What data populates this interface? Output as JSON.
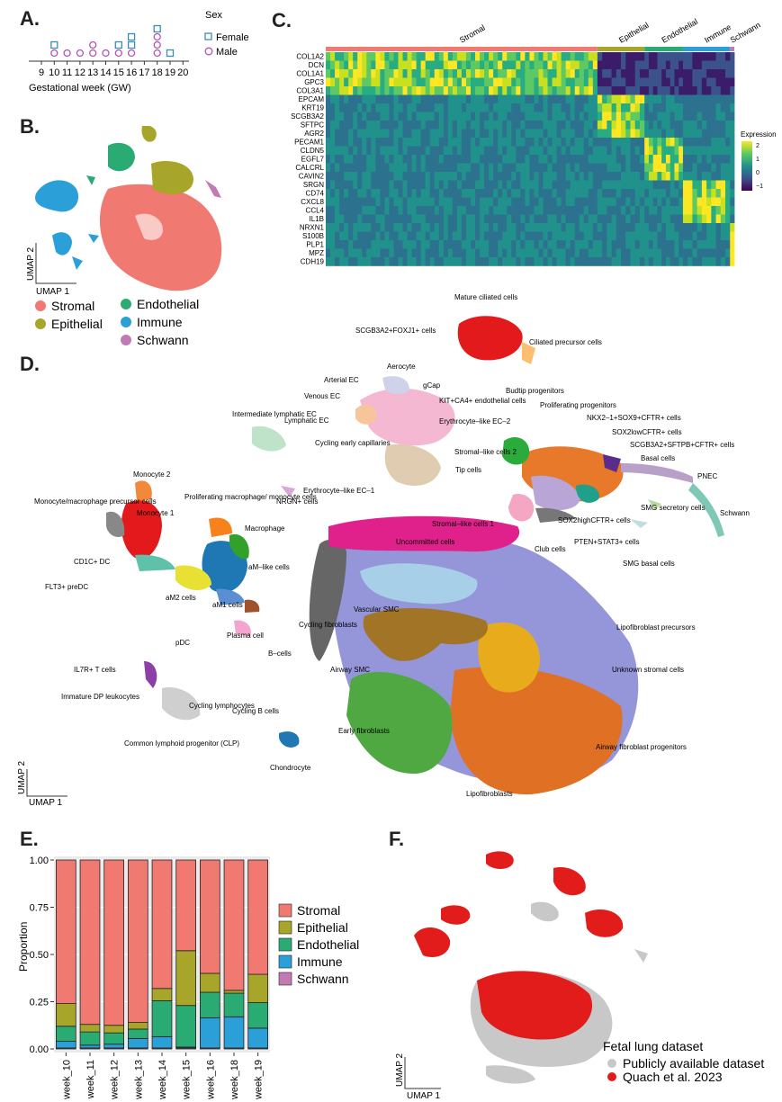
{
  "panels": {
    "a": "A.",
    "b": "B.",
    "c": "C.",
    "d": "D.",
    "e": "E.",
    "f": "F."
  },
  "panel_a": {
    "xlabel": "Gestational week (GW)",
    "ticks": [
      "9",
      "10",
      "11",
      "12",
      "13",
      "14",
      "15",
      "16",
      "17",
      "18",
      "19",
      "20"
    ],
    "legend_title": "Sex",
    "legend": [
      {
        "label": "Female",
        "color": "#3a8fb0",
        "shape": "square"
      },
      {
        "label": "Male",
        "color": "#b252b5",
        "shape": "circle"
      }
    ],
    "samples": [
      {
        "week": 10,
        "female": 1,
        "male": 1
      },
      {
        "week": 11,
        "female": 0,
        "male": 1
      },
      {
        "week": 12,
        "female": 0,
        "male": 1
      },
      {
        "week": 13,
        "female": 0,
        "male": 2
      },
      {
        "week": 14,
        "female": 0,
        "male": 1
      },
      {
        "week": 15,
        "female": 1,
        "male": 1
      },
      {
        "week": 16,
        "female": 2,
        "male": 1
      },
      {
        "week": 18,
        "female": 1,
        "male": 3
      },
      {
        "week": 19,
        "female": 1,
        "male": 0
      }
    ]
  },
  "panel_b": {
    "xlabel": "UMAP 1",
    "ylabel": "UMAP 2",
    "legend": [
      {
        "label": "Stromal",
        "color": "#f07a72"
      },
      {
        "label": "Epithelial",
        "color": "#a7a62a"
      },
      {
        "label": "Endothelial",
        "color": "#2bab74"
      },
      {
        "label": "Immune",
        "color": "#2a9fd8"
      },
      {
        "label": "Schwann",
        "color": "#c27ab5"
      }
    ]
  },
  "panel_c": {
    "groups": [
      {
        "label": "Stromal",
        "color": "#f07a72",
        "frac": 0.635
      },
      {
        "label": "Epithelial",
        "color": "#a7a62a",
        "frac": 0.11
      },
      {
        "label": "Endothelial",
        "color": "#2bab74",
        "frac": 0.09
      },
      {
        "label": "Immune",
        "color": "#2a9fd8",
        "frac": 0.11
      },
      {
        "label": "Schwann",
        "color": "#c27ab5",
        "frac": 0.01
      }
    ],
    "genes": [
      "COL1A2",
      "DCN",
      "COL1A1",
      "GPC3",
      "COL3A1",
      "EPCAM",
      "KRT19",
      "SCGB3A2",
      "SFTPC",
      "AGR2",
      "PECAM1",
      "CLDN5",
      "EGFL7",
      "CALCRL",
      "CAVIN2",
      "SRGN",
      "CD74",
      "CXCL8",
      "CCL4",
      "IL1B",
      "NRXN1",
      "S100B",
      "PLP1",
      "MPZ",
      "CDH19"
    ],
    "gene_group": [
      0,
      0,
      0,
      0,
      0,
      1,
      1,
      1,
      1,
      1,
      2,
      2,
      2,
      2,
      2,
      3,
      3,
      3,
      3,
      3,
      4,
      4,
      4,
      4,
      4
    ],
    "legend_title": "Expression",
    "legend_ticks": [
      "2",
      "1",
      "0",
      "−1"
    ]
  },
  "panel_d": {
    "xlabel": "UMAP 1",
    "ylabel": "UMAP 2",
    "labels": [
      "Mature ciliated cells",
      "SCGB3A2+FOXJ1+ cells",
      "Ciliated precursor cells",
      "Aerocyte",
      "Arterial EC",
      "gCap",
      "KIT+CA4+ endothelial cells",
      "Venous EC",
      "Intermediate lymphatic EC",
      "Lymphatic EC",
      "Erythrocyte–like EC–2",
      "Budtip progenitors",
      "Proliferating progenitors",
      "NKX2–1+SOX9+CFTR+ cells",
      "SOX2lowCFTR+ cells",
      "SCGB3A2+SFTPB+CFTR+ cells",
      "Basal cells",
      "PNEC",
      "Cycling early capillaries",
      "Stromal–like cells 2",
      "Tip cells",
      "Erythrocyte–like EC–1",
      "Monocyte 2",
      "Monocyte/macrophage precursor cells",
      "Proliferating macrophage/ monocyte cells",
      "Monocyte 1",
      "Macrophage",
      "NRGN+ cells",
      "Stromal–like cells 1",
      "SMG secretory cells",
      "Schwann",
      "SOX2highCFTR+ cells",
      "Club cells",
      "PTEN+STAT3+ cells",
      "SMG basal cells",
      "Uncommitted cells",
      "CD1C+ DC",
      "aM–like cells",
      "FLT3+ preDC",
      "aM2 cells",
      "aM1 cells",
      "Vascular SMC",
      "Cycling fibroblasts",
      "Lipofibroblast precursors",
      "pDC",
      "Plasma cell",
      "B–cells",
      "IL7R+ T cells",
      "Airway SMC",
      "Unknown stromal cells",
      "Immature DP leukocytes",
      "Cycling lymphocytes",
      "Cycling B cells",
      "Airway fibroblast progenitors",
      "Common lymphoid progenitor (CLP)",
      "Early fibroblasts",
      "Chondrocyte",
      "Lipofibroblasts"
    ]
  },
  "chart_data": {
    "type": "bar",
    "stacked": true,
    "categories": [
      "week_10",
      "week_11",
      "week_12",
      "week_13",
      "week_14",
      "week_15",
      "week_16",
      "week_18",
      "week_19"
    ],
    "series": [
      {
        "name": "Schwann",
        "color": "#c27ab5",
        "values": [
          0.005,
          0.005,
          0.005,
          0.005,
          0.005,
          0.005,
          0.005,
          0.005,
          0.005
        ]
      },
      {
        "name": "Immune",
        "color": "#2a9fd8",
        "values": [
          0.035,
          0.015,
          0.02,
          0.05,
          0.06,
          0.005,
          0.16,
          0.165,
          0.105
        ]
      },
      {
        "name": "Endothelial",
        "color": "#2bab74",
        "values": [
          0.08,
          0.07,
          0.06,
          0.05,
          0.19,
          0.22,
          0.135,
          0.125,
          0.135
        ]
      },
      {
        "name": "Epithelial",
        "color": "#a7a62a",
        "values": [
          0.12,
          0.04,
          0.04,
          0.035,
          0.065,
          0.29,
          0.1,
          0.015,
          0.15
        ]
      },
      {
        "name": "Stromal",
        "color": "#f07a72",
        "values": [
          0.76,
          0.87,
          0.875,
          0.86,
          0.68,
          0.48,
          0.6,
          0.69,
          0.605
        ]
      }
    ],
    "ylabel": "Proportion",
    "ylim": [
      0,
      1
    ],
    "yticks": [
      "0.00",
      "0.25",
      "0.50",
      "0.75",
      "1.00"
    ],
    "legend_order": [
      "Stromal",
      "Epithelial",
      "Endothelial",
      "Immune",
      "Schwann"
    ],
    "legend": "right"
  },
  "panel_f": {
    "xlabel": "UMAP 1",
    "ylabel": "UMAP 2",
    "legend_title": "Fetal lung dataset",
    "legend": [
      {
        "label": "Publicly available dataset",
        "color": "#c8c8c8"
      },
      {
        "label": "Quach et al. 2023",
        "color": "#e21b1b"
      }
    ]
  }
}
